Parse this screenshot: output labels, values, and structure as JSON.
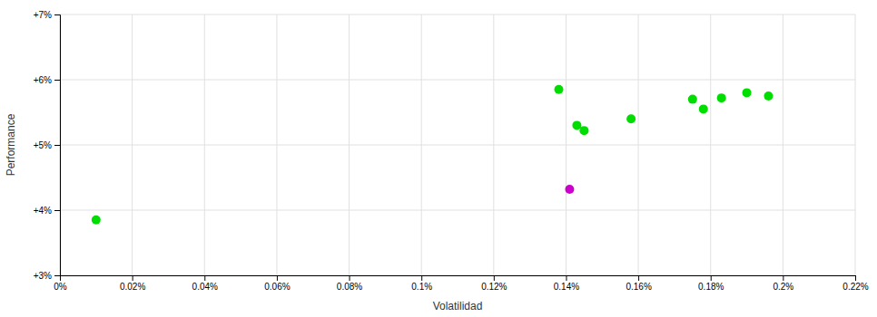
{
  "chart_data": {
    "type": "scatter",
    "xlabel": "Volatilidad",
    "ylabel": "Performance",
    "series": [
      {
        "color": "#00dd00",
        "x": [
          0.0001,
          0.00138,
          0.00143,
          0.00145,
          0.00158,
          0.00175,
          0.00178,
          0.00183,
          0.0019,
          0.00196
        ],
        "values": [
          0.0385,
          0.0585,
          0.053,
          0.0522,
          0.054,
          0.057,
          0.0555,
          0.0572,
          0.058,
          0.0575
        ]
      },
      {
        "color": "#cc00cc",
        "x": [
          0.00141
        ],
        "values": [
          0.0432
        ]
      }
    ],
    "xlim": [
      0.0,
      0.0022
    ],
    "ylim": [
      0.03,
      0.07
    ],
    "xticks": [
      {
        "value": 0.0,
        "label": "0%"
      },
      {
        "value": 0.0002,
        "label": "0.02%"
      },
      {
        "value": 0.0004,
        "label": "0.04%"
      },
      {
        "value": 0.0006,
        "label": "0.06%"
      },
      {
        "value": 0.0008,
        "label": "0.08%"
      },
      {
        "value": 0.001,
        "label": "0.1%"
      },
      {
        "value": 0.0012,
        "label": "0.12%"
      },
      {
        "value": 0.0014,
        "label": "0.14%"
      },
      {
        "value": 0.0016,
        "label": "0.16%"
      },
      {
        "value": 0.0018,
        "label": "0.18%"
      },
      {
        "value": 0.002,
        "label": "0.2%"
      },
      {
        "value": 0.0022,
        "label": "0.22%"
      }
    ],
    "yticks": [
      {
        "value": 0.03,
        "label": "+3%"
      },
      {
        "value": 0.04,
        "label": "+4%"
      },
      {
        "value": 0.05,
        "label": "+5%"
      },
      {
        "value": 0.06,
        "label": "+6%"
      },
      {
        "value": 0.07,
        "label": "+7%"
      }
    ],
    "grid": true
  }
}
